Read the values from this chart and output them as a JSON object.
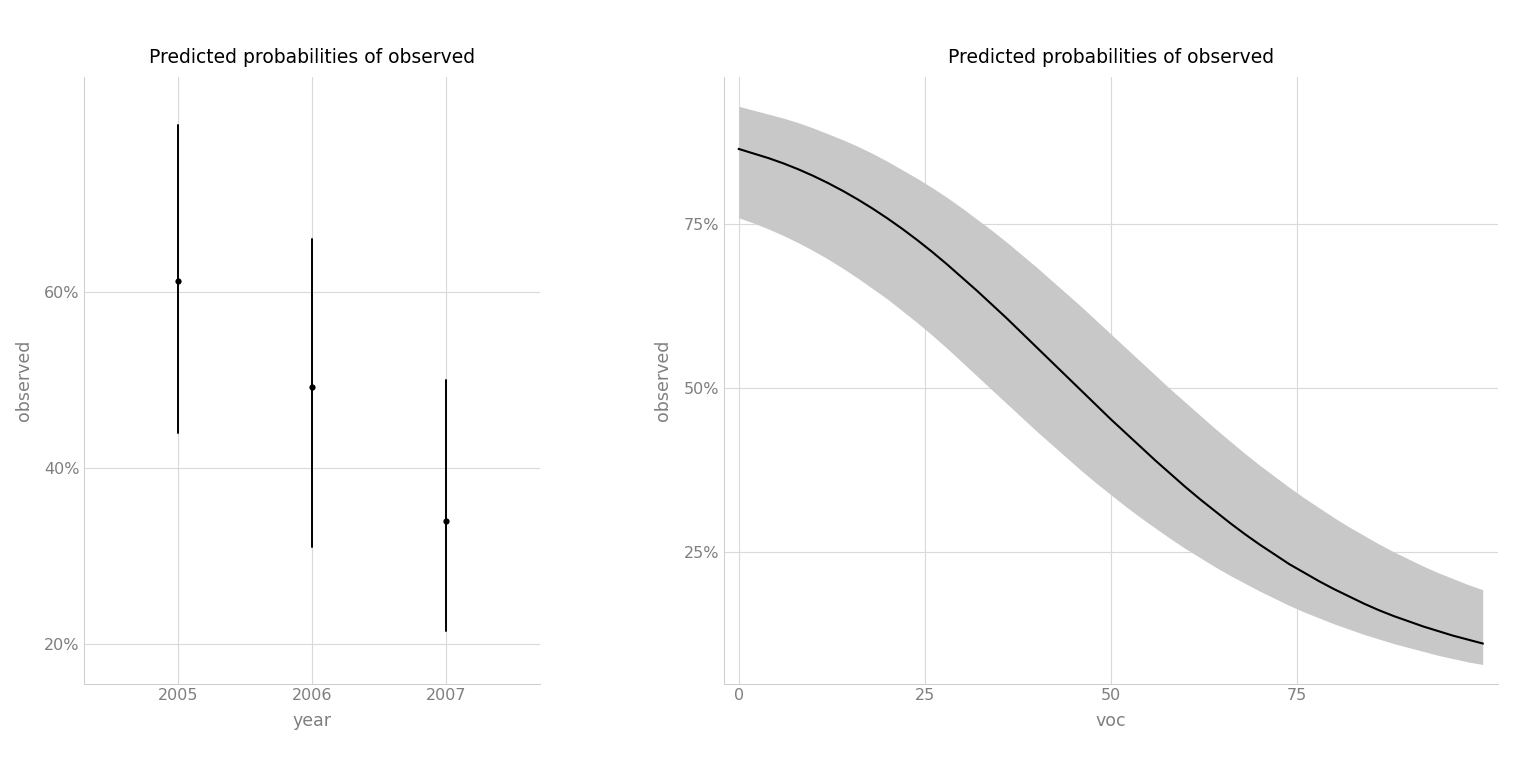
{
  "title": "Predicted probabilities of observed",
  "background_color": "#ffffff",
  "grid_color": "#d9d9d9",
  "text_color": "#7f7f7f",
  "plot1": {
    "years": [
      2005,
      2006,
      2007
    ],
    "means": [
      0.613,
      0.492,
      0.34
    ],
    "ci_upper": [
      0.79,
      0.66,
      0.5
    ],
    "ci_lower": [
      0.44,
      0.31,
      0.215
    ],
    "xlabel": "year",
    "ylabel": "observed",
    "yticks": [
      0.2,
      0.4,
      0.6
    ],
    "ytick_labels": [
      "20%",
      "40%",
      "60%"
    ],
    "ylim": [
      0.155,
      0.845
    ],
    "xlim": [
      2004.3,
      2007.7
    ],
    "xticks": [
      2005,
      2006,
      2007
    ]
  },
  "plot2": {
    "voc_x": [
      0,
      2,
      4,
      6,
      8,
      10,
      12,
      14,
      16,
      18,
      20,
      22,
      24,
      26,
      28,
      30,
      32,
      34,
      36,
      38,
      40,
      42,
      44,
      46,
      48,
      50,
      52,
      54,
      56,
      58,
      60,
      62,
      64,
      66,
      68,
      70,
      72,
      74,
      76,
      78,
      80,
      82,
      84,
      86,
      88,
      90,
      92,
      94,
      96,
      98,
      100
    ],
    "pred": [
      0.865,
      0.858,
      0.851,
      0.843,
      0.834,
      0.824,
      0.813,
      0.801,
      0.788,
      0.774,
      0.759,
      0.743,
      0.726,
      0.708,
      0.689,
      0.669,
      0.649,
      0.628,
      0.607,
      0.585,
      0.563,
      0.541,
      0.519,
      0.497,
      0.475,
      0.453,
      0.432,
      0.411,
      0.39,
      0.37,
      0.35,
      0.331,
      0.313,
      0.295,
      0.278,
      0.262,
      0.247,
      0.232,
      0.219,
      0.206,
      0.194,
      0.183,
      0.172,
      0.162,
      0.153,
      0.145,
      0.137,
      0.13,
      0.123,
      0.117,
      0.111
    ],
    "ci_upper": [
      0.93,
      0.924,
      0.918,
      0.912,
      0.905,
      0.897,
      0.888,
      0.879,
      0.869,
      0.858,
      0.846,
      0.833,
      0.82,
      0.806,
      0.791,
      0.775,
      0.758,
      0.741,
      0.723,
      0.704,
      0.685,
      0.665,
      0.645,
      0.625,
      0.604,
      0.583,
      0.562,
      0.541,
      0.52,
      0.499,
      0.479,
      0.459,
      0.439,
      0.42,
      0.401,
      0.383,
      0.366,
      0.349,
      0.333,
      0.318,
      0.303,
      0.289,
      0.276,
      0.263,
      0.251,
      0.24,
      0.229,
      0.219,
      0.21,
      0.201,
      0.193
    ],
    "ci_lower": [
      0.76,
      0.752,
      0.743,
      0.733,
      0.722,
      0.71,
      0.697,
      0.683,
      0.668,
      0.652,
      0.636,
      0.618,
      0.6,
      0.581,
      0.561,
      0.54,
      0.519,
      0.498,
      0.477,
      0.456,
      0.435,
      0.415,
      0.395,
      0.375,
      0.356,
      0.338,
      0.32,
      0.303,
      0.287,
      0.271,
      0.256,
      0.242,
      0.228,
      0.215,
      0.203,
      0.191,
      0.18,
      0.169,
      0.159,
      0.15,
      0.141,
      0.133,
      0.125,
      0.118,
      0.111,
      0.105,
      0.099,
      0.093,
      0.088,
      0.083,
      0.079
    ],
    "xlabel": "voc",
    "ylabel": "observed",
    "yticks": [
      0.25,
      0.5,
      0.75
    ],
    "ytick_labels": [
      "25%",
      "50%",
      "75%"
    ],
    "ylim": [
      0.05,
      0.975
    ],
    "xlim": [
      -2,
      102
    ],
    "xticks": [
      0,
      25,
      50,
      75
    ]
  }
}
